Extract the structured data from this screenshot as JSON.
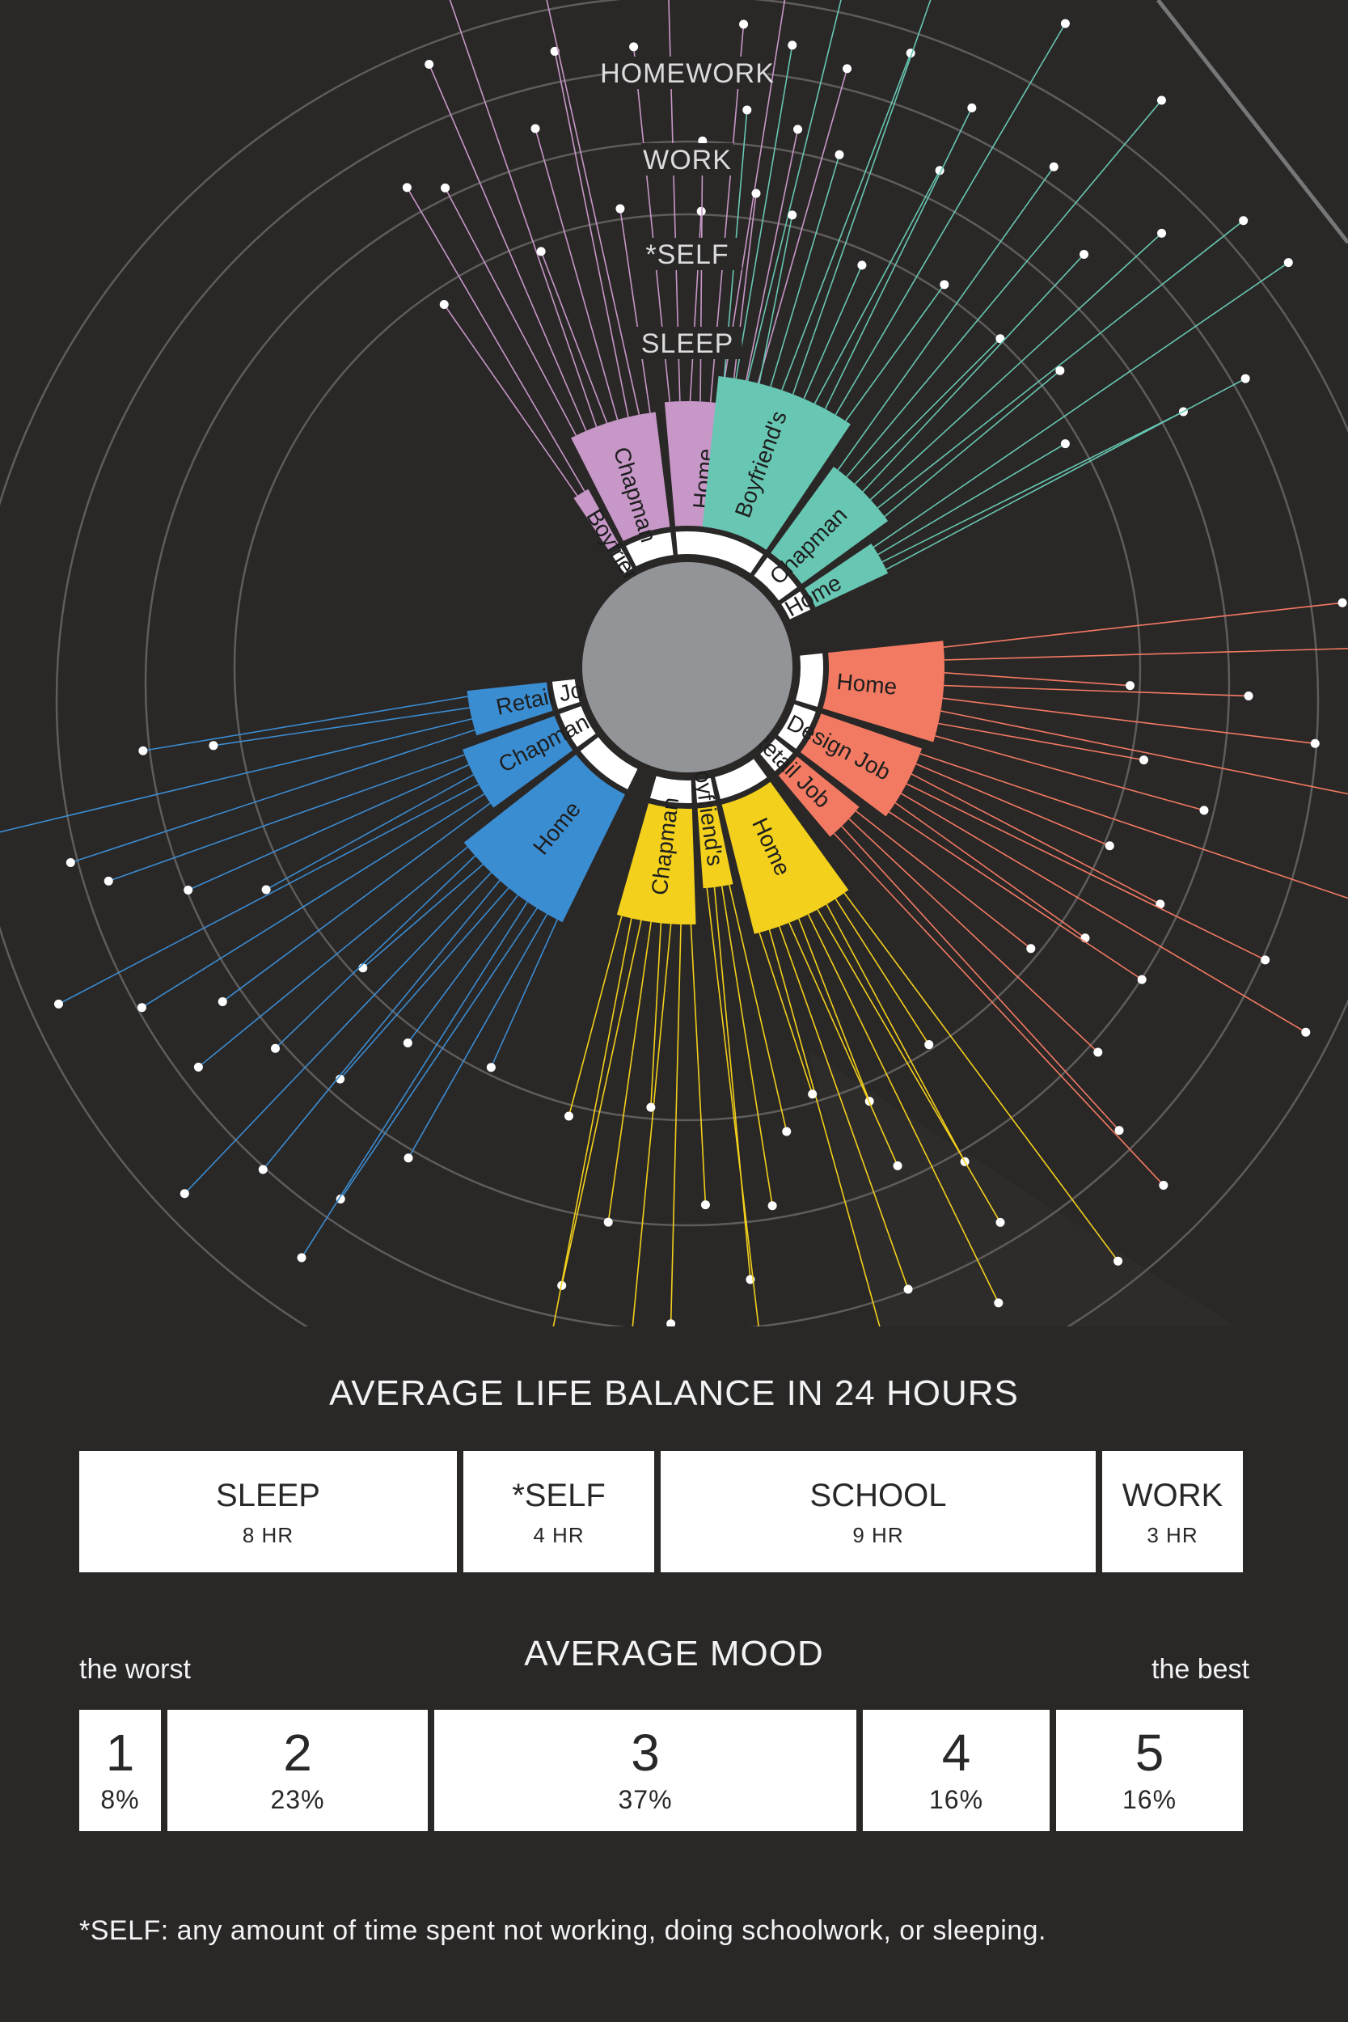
{
  "chart_data": [
    {
      "type": "radial",
      "ring_labels": [
        "HOMEWORK",
        "WORK",
        "*SELF",
        "SLEEP"
      ],
      "series": [
        {
          "color": "#c797c7",
          "segments": [
            {
              "label": "Boyfriend's",
              "value": 2
            },
            {
              "label": "Chapman",
              "value": 8
            },
            {
              "label": "Home",
              "value": 9
            }
          ]
        },
        {
          "color": "#67c7b2",
          "segments": [
            {
              "label": "Boyfriend's",
              "value": 12
            },
            {
              "label": "Chapman",
              "value": 7
            },
            {
              "label": "Home",
              "value": 4
            }
          ]
        },
        {
          "color": "#f27a62",
          "segments": [
            {
              "label": "Home",
              "value": 8
            },
            {
              "label": "Design Job",
              "value": 7
            },
            {
              "label": "Retail Job",
              "value": 4
            }
          ]
        },
        {
          "color": "#f2d01c",
          "segments": [
            {
              "label": "Home",
              "value": 10
            },
            {
              "label": "Boyfriend's",
              "value": 4
            },
            {
              "label": "Chapman",
              "value": 8
            }
          ]
        },
        {
          "color": "#3b8dd1",
          "segments": [
            {
              "label": "Home",
              "value": 11
            },
            {
              "label": "Chapman",
              "value": 6
            },
            {
              "label": "Retail Job",
              "value": 4
            }
          ]
        }
      ]
    },
    {
      "type": "table",
      "title": "AVERAGE LIFE BALANCE IN 24 HOURS",
      "categories": [
        "SLEEP",
        "*SELF",
        "SCHOOL",
        "WORK"
      ],
      "labels": [
        "8 HR",
        "4 HR",
        "9 HR",
        "3 HR"
      ],
      "values": [
        8,
        4,
        9,
        3
      ],
      "unit": "HR"
    },
    {
      "type": "table",
      "title": "AVERAGE MOOD",
      "min_label": "the worst",
      "max_label": "the best",
      "categories": [
        "1",
        "2",
        "3",
        "4",
        "5"
      ],
      "labels": [
        "8%",
        "23%",
        "37%",
        "16%",
        "16%"
      ],
      "values": [
        8,
        23,
        37,
        16,
        16
      ],
      "unit": "%"
    }
  ],
  "balance": {
    "title": "AVERAGE LIFE BALANCE IN 24 HOURS",
    "items": [
      {
        "label": "SLEEP",
        "value": "8 HR"
      },
      {
        "label": "*SELF",
        "value": "4 HR"
      },
      {
        "label": "SCHOOL",
        "value": "9 HR"
      },
      {
        "label": "WORK",
        "value": "3 HR"
      }
    ]
  },
  "mood": {
    "title": "AVERAGE MOOD",
    "min_label": "the worst",
    "max_label": "the best",
    "items": [
      {
        "label": "1",
        "value": "8%"
      },
      {
        "label": "2",
        "value": "23%"
      },
      {
        "label": "3",
        "value": "37%"
      },
      {
        "label": "4",
        "value": "16%"
      },
      {
        "label": "5",
        "value": "16%"
      }
    ]
  },
  "footnote": "*SELF: any amount of time spent not working, doing schoolwork, or sleeping.",
  "colors": {
    "background": "#2a2727",
    "hub": "#929497",
    "ring": "#6b6868",
    "box": "#ffffff",
    "text": "#f3f3f3"
  }
}
